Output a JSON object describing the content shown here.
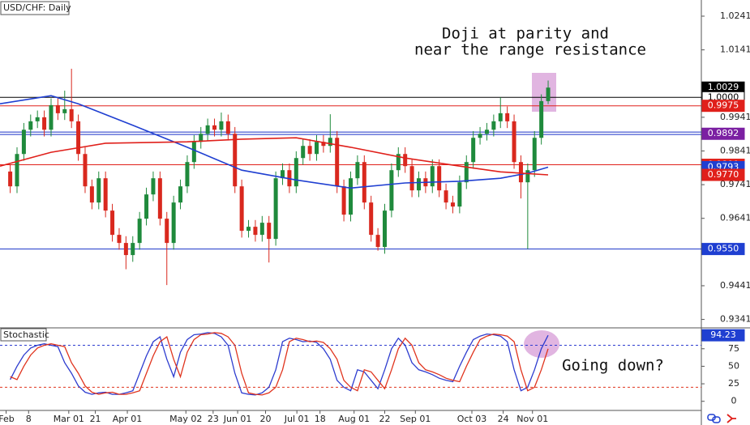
{
  "chart_data": [
    {
      "type": "candlestick",
      "title": "USD/CHF: Daily",
      "annotation": [
        "Doji at parity and",
        "near the range resistance"
      ],
      "up_color": "#1f8a3c",
      "down_color": "#d9281e",
      "open": [
        0.978,
        0.9736,
        0.9832,
        0.9904,
        0.9929,
        0.9941,
        0.9904,
        0.9977,
        0.9953,
        0.9965,
        0.9929,
        0.9832,
        0.9736,
        0.9688,
        0.976,
        0.9664,
        0.9592,
        0.9568,
        0.9532,
        0.9568,
        0.964,
        0.9712,
        0.976,
        0.964,
        0.9568,
        0.9688,
        0.9736,
        0.9808,
        0.9868,
        0.9892,
        0.9917,
        0.9904,
        0.9929,
        0.9892,
        0.9736,
        0.9604,
        0.9616,
        0.9592,
        0.9628,
        0.958,
        0.976,
        0.9784,
        0.9736,
        0.982,
        0.9856,
        0.9832,
        0.9868,
        0.9856,
        0.988,
        0.9736,
        0.9652,
        0.976,
        0.9808,
        0.9688,
        0.9592,
        0.9556,
        0.9664,
        0.9784,
        0.9832,
        0.9796,
        0.9724,
        0.976,
        0.9736,
        0.9796,
        0.9724,
        0.9688,
        0.9676,
        0.9748,
        0.9808,
        0.988,
        0.9892,
        0.9904,
        0.9929,
        0.9953,
        0.9929,
        0.9808,
        0.9748,
        0.9784,
        0.988,
        0.9989
      ],
      "high": [
        0.98,
        0.9852,
        0.9924,
        0.9949,
        0.9961,
        0.9961,
        0.9997,
        0.9997,
        1.002,
        1.0085,
        0.9949,
        0.9852,
        0.9756,
        0.978,
        0.978,
        0.9684,
        0.9612,
        0.9588,
        0.9588,
        0.966,
        0.9732,
        0.978,
        0.978,
        0.966,
        0.9708,
        0.9756,
        0.9828,
        0.9888,
        0.9912,
        0.9937,
        0.9937,
        0.9955,
        0.9949,
        0.9912,
        0.9756,
        0.9636,
        0.9636,
        0.9648,
        0.9648,
        0.978,
        0.9804,
        0.9804,
        0.984,
        0.9876,
        0.9876,
        0.9888,
        0.9888,
        0.995,
        0.99,
        0.9756,
        0.978,
        0.9828,
        0.9828,
        0.9708,
        0.9612,
        0.9684,
        0.9804,
        0.9852,
        0.9852,
        0.9816,
        0.978,
        0.978,
        0.9816,
        0.9816,
        0.9744,
        0.9708,
        0.9768,
        0.9828,
        0.99,
        0.9912,
        0.9924,
        0.9949,
        1.0,
        0.9973,
        0.9949,
        0.9828,
        0.9804,
        0.99,
        1.0009,
        1.005
      ],
      "low": [
        0.9716,
        0.9716,
        0.9812,
        0.9884,
        0.9909,
        0.9884,
        0.9884,
        0.9933,
        0.9933,
        0.9909,
        0.9812,
        0.9716,
        0.9668,
        0.9668,
        0.9644,
        0.9572,
        0.9548,
        0.949,
        0.9512,
        0.9548,
        0.962,
        0.9692,
        0.962,
        0.9443,
        0.9548,
        0.9668,
        0.9716,
        0.9788,
        0.9848,
        0.9872,
        0.9884,
        0.9884,
        0.9872,
        0.9716,
        0.9584,
        0.9584,
        0.9572,
        0.9572,
        0.951,
        0.956,
        0.974,
        0.9716,
        0.9716,
        0.98,
        0.9812,
        0.9812,
        0.9836,
        0.9836,
        0.9716,
        0.9632,
        0.9632,
        0.974,
        0.9668,
        0.9572,
        0.9545,
        0.9536,
        0.9644,
        0.9764,
        0.9776,
        0.9704,
        0.9704,
        0.9716,
        0.9716,
        0.9704,
        0.9668,
        0.9656,
        0.9656,
        0.9728,
        0.9788,
        0.986,
        0.9872,
        0.9884,
        0.9909,
        0.9909,
        0.9788,
        0.97,
        0.955,
        0.9764,
        0.986,
        0.998
      ],
      "close": [
        0.9736,
        0.9832,
        0.9904,
        0.9929,
        0.9941,
        0.9904,
        0.9977,
        0.9953,
        0.9965,
        0.9929,
        0.9832,
        0.9736,
        0.9688,
        0.976,
        0.9664,
        0.9592,
        0.9568,
        0.9532,
        0.9568,
        0.964,
        0.9712,
        0.976,
        0.964,
        0.9568,
        0.9688,
        0.9736,
        0.9808,
        0.9868,
        0.9892,
        0.9917,
        0.9904,
        0.9929,
        0.9892,
        0.9736,
        0.9604,
        0.9616,
        0.9592,
        0.9628,
        0.958,
        0.976,
        0.9784,
        0.9736,
        0.982,
        0.9856,
        0.9832,
        0.9868,
        0.9856,
        0.988,
        0.9736,
        0.9652,
        0.976,
        0.9808,
        0.9688,
        0.9592,
        0.9556,
        0.9664,
        0.9784,
        0.9832,
        0.9796,
        0.9724,
        0.976,
        0.9736,
        0.9796,
        0.9724,
        0.9688,
        0.9676,
        0.9748,
        0.9808,
        0.988,
        0.9892,
        0.9904,
        0.9929,
        0.9953,
        0.9929,
        0.9808,
        0.9748,
        0.9784,
        0.988,
        0.9989,
        1.0029
      ],
      "series": [
        {
          "color": "#1f3fd1",
          "x": [
            -1.5,
            6,
            10,
            18,
            26,
            34,
            42,
            50,
            58,
            66,
            72,
            76,
            79
          ],
          "values": [
            0.9981,
            1.0005,
            0.9981,
            0.9917,
            0.9852,
            0.9784,
            0.9755,
            0.9731,
            0.9746,
            0.9751,
            0.976,
            0.9775,
            0.9793
          ]
        },
        {
          "color": "#e0201b",
          "x": [
            -1.5,
            6,
            14,
            26,
            34,
            42,
            50,
            58,
            66,
            72,
            79
          ],
          "values": [
            0.9796,
            0.9837,
            0.9864,
            0.9868,
            0.9876,
            0.988,
            0.9852,
            0.982,
            0.9796,
            0.9779,
            0.977
          ]
        }
      ],
      "levels": [
        {
          "value": 1,
          "color": "#000000"
        },
        {
          "value": 0.9975,
          "color": "#e0201b"
        },
        {
          "value": 0.9897,
          "color": "#1a33c8"
        },
        {
          "value": 0.989,
          "color": "#1a33c8"
        },
        {
          "value": 0.98,
          "color": "#e0201b"
        },
        {
          "value": 0.955,
          "color": "#1a33c8"
        }
      ],
      "price_labels": [
        {
          "value": 1.0029,
          "label": "1.0029",
          "color": "#000000",
          "text_color": "#ffffff"
        },
        {
          "value": 1,
          "label": "1.0000",
          "color": "#ffffff",
          "text_color": "#000000"
        },
        {
          "value": 0.9975,
          "label": "0.9975",
          "color": "#e0201b",
          "text_color": "#ffffff"
        },
        {
          "value": 0.9892,
          "label": "0.9892",
          "color": "#7b1fa2",
          "text_color": "#ffffff"
        },
        {
          "value": 0.98,
          "label": "0.9800",
          "color": "#e0201b",
          "text_color": "#ffffff"
        },
        {
          "value": 0.9793,
          "label": "0.9793",
          "color": "#1f3fd1",
          "text_color": "#ffffff"
        },
        {
          "value": 0.977,
          "label": "0.9770",
          "color": "#e0201b",
          "text_color": "#ffffff"
        },
        {
          "value": 0.955,
          "label": "0.9550",
          "color": "#1f3fd1",
          "text_color": "#ffffff"
        }
      ],
      "ylim": [
        0.9316,
        1.0289
      ],
      "yticks": [
        1.0241,
        1.0141,
        0.9941,
        0.9841,
        0.9741,
        0.9641,
        0.9441,
        0.9341
      ],
      "xlim": [
        -1.5,
        101.5
      ],
      "xticks": [
        {
          "value": -0.6,
          "label": "Feb"
        },
        {
          "value": 2.7,
          "label": "8"
        },
        {
          "value": 8.6,
          "label": "Mar 01"
        },
        {
          "value": 12.5,
          "label": "21"
        },
        {
          "value": 17.2,
          "label": "Apr 01"
        },
        {
          "value": 25.8,
          "label": "May 02"
        },
        {
          "value": 29.8,
          "label": "23"
        },
        {
          "value": 33.4,
          "label": "Jun 01"
        },
        {
          "value": 37.5,
          "label": "20"
        },
        {
          "value": 42.1,
          "label": "Jul 01"
        },
        {
          "value": 45.5,
          "label": "18"
        },
        {
          "value": 50.5,
          "label": "Aug 01"
        },
        {
          "value": 55,
          "label": "22"
        },
        {
          "value": 59.5,
          "label": "Sep 01"
        },
        {
          "value": 67.8,
          "label": "Oct 03"
        },
        {
          "value": 72.4,
          "label": "24"
        },
        {
          "value": 76.7,
          "label": "Nov 01"
        }
      ]
    },
    {
      "type": "line",
      "title": "Stochastic",
      "annotation": "Going down?",
      "series": [
        {
          "color": "#2d3ccf",
          "values": [
            31,
            50,
            66,
            76,
            80,
            82,
            80,
            78,
            55,
            40,
            22,
            13,
            10,
            12,
            13,
            10,
            10,
            12,
            15,
            40,
            65,
            85,
            92,
            60,
            35,
            70,
            88,
            95,
            96,
            98,
            97,
            92,
            80,
            40,
            12,
            10,
            9,
            12,
            20,
            45,
            85,
            90,
            88,
            85,
            86,
            84,
            75,
            60,
            30,
            20,
            15,
            45,
            42,
            30,
            18,
            45,
            75,
            90,
            80,
            55,
            45,
            42,
            38,
            33,
            30,
            28,
            50,
            70,
            88,
            93,
            96,
            95,
            93,
            85,
            45,
            15,
            20,
            45,
            75,
            94.23
          ]
        },
        {
          "color": "#e0341e",
          "values": [
            35,
            31,
            50,
            66,
            76,
            80,
            82,
            80,
            78,
            55,
            40,
            22,
            13,
            10,
            12,
            13,
            10,
            10,
            12,
            15,
            40,
            65,
            85,
            92,
            60,
            35,
            70,
            88,
            95,
            96,
            98,
            97,
            92,
            80,
            40,
            12,
            10,
            9,
            12,
            20,
            45,
            85,
            90,
            88,
            85,
            86,
            84,
            75,
            60,
            30,
            20,
            15,
            45,
            42,
            30,
            18,
            45,
            75,
            90,
            80,
            55,
            45,
            42,
            38,
            33,
            30,
            28,
            50,
            70,
            88,
            93,
            96,
            95,
            93,
            85,
            45,
            15,
            20,
            45,
            75
          ]
        }
      ],
      "levels": [
        {
          "value": 80,
          "color": "#2d3ccf"
        },
        {
          "value": 20,
          "color": "#e0341e"
        }
      ],
      "price_labels": [
        {
          "value": 94.23,
          "color": "#1f3fd1",
          "text_color": "#ffffff"
        }
      ],
      "ylim": [
        -10.7,
        104.8
      ],
      "yticks": [
        75,
        50,
        25,
        0
      ]
    }
  ]
}
